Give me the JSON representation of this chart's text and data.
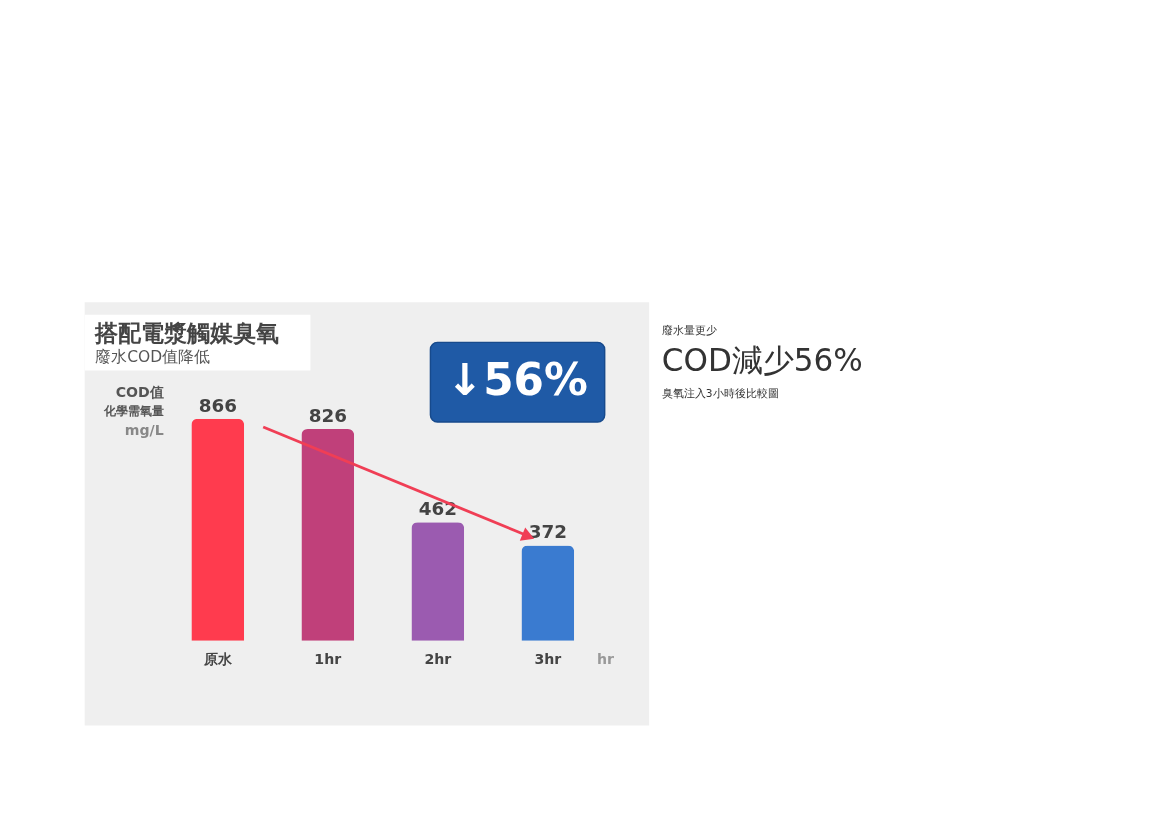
{
  "chart_data": {
    "type": "bar",
    "title": "搭配電漿觸媒臭氧",
    "subtitle": "廢水COD值降低",
    "ylabel": "COD值化學需氧量mg/L",
    "xlabel": "hr",
    "categories": [
      "原水",
      "1hr",
      "2hr",
      "3hr"
    ],
    "values": [
      866,
      826,
      462,
      372
    ],
    "colors": [
      "#ff3b4e",
      "#c0407a",
      "#9b5bb0",
      "#3a7bd0"
    ],
    "data_labels": true,
    "annotations": [
      "↓56%",
      "廢水量更少",
      "COD減少56%",
      "臭氧注入3小時後比較圖"
    ]
  }
}
